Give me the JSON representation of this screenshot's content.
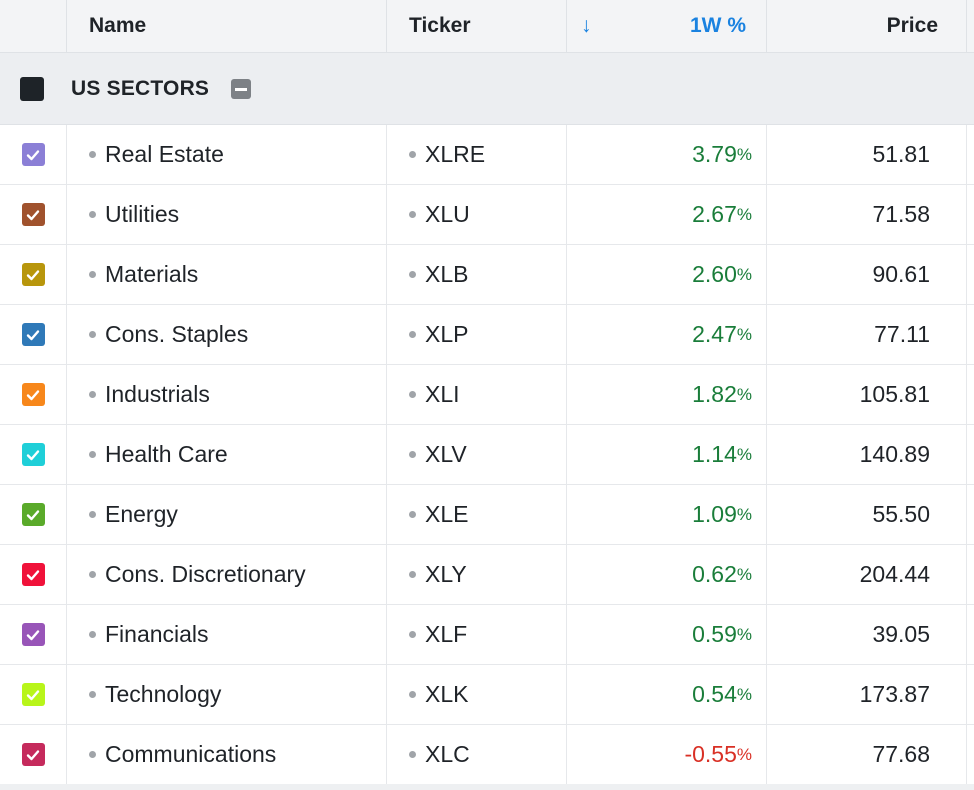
{
  "header": {
    "name": "Name",
    "ticker": "Ticker",
    "sort_icon": "↓",
    "change": "1W %",
    "price": "Price"
  },
  "group": {
    "label": "US SECTORS"
  },
  "rows": [
    {
      "name": "Real Estate",
      "ticker": "XLRE",
      "change": "3.79",
      "price": "51.81",
      "color": "#8b7fd6",
      "dir": "pos"
    },
    {
      "name": "Utilities",
      "ticker": "XLU",
      "change": "2.67",
      "price": "71.58",
      "color": "#a0522d",
      "dir": "pos"
    },
    {
      "name": "Materials",
      "ticker": "XLB",
      "change": "2.60",
      "price": "90.61",
      "color": "#b8960c",
      "dir": "pos"
    },
    {
      "name": "Cons. Staples",
      "ticker": "XLP",
      "change": "2.47",
      "price": "77.11",
      "color": "#2f79b8",
      "dir": "pos"
    },
    {
      "name": "Industrials",
      "ticker": "XLI",
      "change": "1.82",
      "price": "105.81",
      "color": "#f7871b",
      "dir": "pos"
    },
    {
      "name": "Health Care",
      "ticker": "XLV",
      "change": "1.14",
      "price": "140.89",
      "color": "#1fcfd8",
      "dir": "pos"
    },
    {
      "name": "Energy",
      "ticker": "XLE",
      "change": "1.09",
      "price": "55.50",
      "color": "#5aaa2a",
      "dir": "pos"
    },
    {
      "name": "Cons. Discretionary",
      "ticker": "XLY",
      "change": "0.62",
      "price": "204.44",
      "color": "#f0123a",
      "dir": "pos"
    },
    {
      "name": "Financials",
      "ticker": "XLF",
      "change": "0.59",
      "price": "39.05",
      "color": "#9855b8",
      "dir": "pos"
    },
    {
      "name": "Technology",
      "ticker": "XLK",
      "change": "0.54",
      "price": "173.87",
      "color": "#b8f51a",
      "dir": "pos"
    },
    {
      "name": "Communications",
      "ticker": "XLC",
      "change": "-0.55",
      "price": "77.68",
      "color": "#c52a5c",
      "dir": "neg"
    }
  ],
  "pct_symbol": "%",
  "icons": {
    "checkbox": "check-icon",
    "collapse": "minus-icon",
    "sort": "arrow-down-icon"
  }
}
